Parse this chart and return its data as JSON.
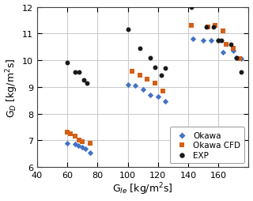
{
  "okawa_x": [
    60,
    65,
    67,
    70,
    72,
    75,
    100,
    105,
    110,
    115,
    120,
    125,
    143,
    150,
    155,
    160,
    163,
    170,
    172,
    175
  ],
  "okawa_y": [
    6.9,
    6.85,
    6.8,
    6.75,
    6.7,
    6.55,
    9.1,
    9.05,
    8.9,
    8.7,
    8.65,
    8.45,
    10.8,
    10.75,
    10.75,
    10.75,
    10.3,
    10.35,
    10.1,
    10.05
  ],
  "okawa_cfd_x": [
    60,
    62,
    65,
    68,
    70,
    75,
    103,
    108,
    113,
    118,
    123,
    142,
    153,
    158,
    163,
    165,
    170,
    174
  ],
  "okawa_cfd_y": [
    7.3,
    7.25,
    7.15,
    7.0,
    6.95,
    6.9,
    9.6,
    9.45,
    9.3,
    9.15,
    8.85,
    11.3,
    11.25,
    11.3,
    11.1,
    10.6,
    10.45,
    10.05
  ],
  "exp_x": [
    60,
    65,
    68,
    71,
    73,
    100,
    108,
    115,
    118,
    122,
    125,
    142,
    152,
    157,
    160,
    162,
    168,
    172,
    175
  ],
  "exp_y": [
    9.9,
    9.55,
    9.55,
    9.25,
    9.15,
    11.15,
    10.45,
    10.1,
    9.75,
    9.45,
    9.7,
    12.0,
    11.25,
    11.25,
    10.75,
    10.75,
    10.6,
    10.1,
    9.55
  ],
  "okawa_color": "#4472C4",
  "okawa_cfd_color": "#D45F17",
  "exp_color": "#1A1A1A",
  "xlabel": "G$_{le}$ [kg/m$^{2}$s]",
  "ylabel": "G$_{D}$ [kg/m$^{2}$s]",
  "xlim": [
    40,
    180
  ],
  "ylim": [
    6,
    12
  ],
  "xticks": [
    40,
    60,
    80,
    100,
    120,
    140,
    160,
    180
  ],
  "yticks": [
    6,
    7,
    8,
    9,
    10,
    11,
    12
  ],
  "legend_labels": [
    "Okawa",
    "Okawa CFD",
    "EXP"
  ],
  "grid_color": "#CCCCCC",
  "bg_color": "#FFFFFF"
}
